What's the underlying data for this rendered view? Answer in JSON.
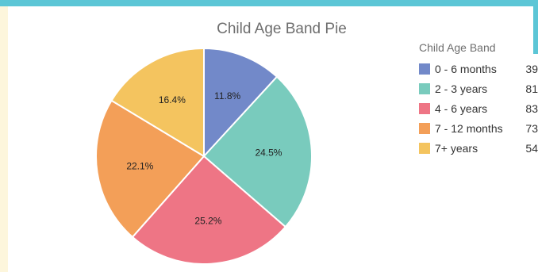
{
  "chart_data": {
    "type": "pie",
    "title": "Child Age Band Pie",
    "legend_title": "Child Age Band",
    "legend_position": "right",
    "slices": [
      {
        "label": "0 - 6 months",
        "value": 39,
        "percent_label": "11.8%",
        "color": "#7289c9"
      },
      {
        "label": "2 - 3 years",
        "value": 81,
        "percent_label": "24.5%",
        "color": "#79cbbd"
      },
      {
        "label": "4 - 6 years",
        "value": 83,
        "percent_label": "25.2%",
        "color": "#ee7585"
      },
      {
        "label": "7 - 12 months",
        "value": 73,
        "percent_label": "22.1%",
        "color": "#f39f58"
      },
      {
        "label": "7+ years",
        "value": 54,
        "percent_label": "16.4%",
        "color": "#f4c45f"
      }
    ]
  }
}
